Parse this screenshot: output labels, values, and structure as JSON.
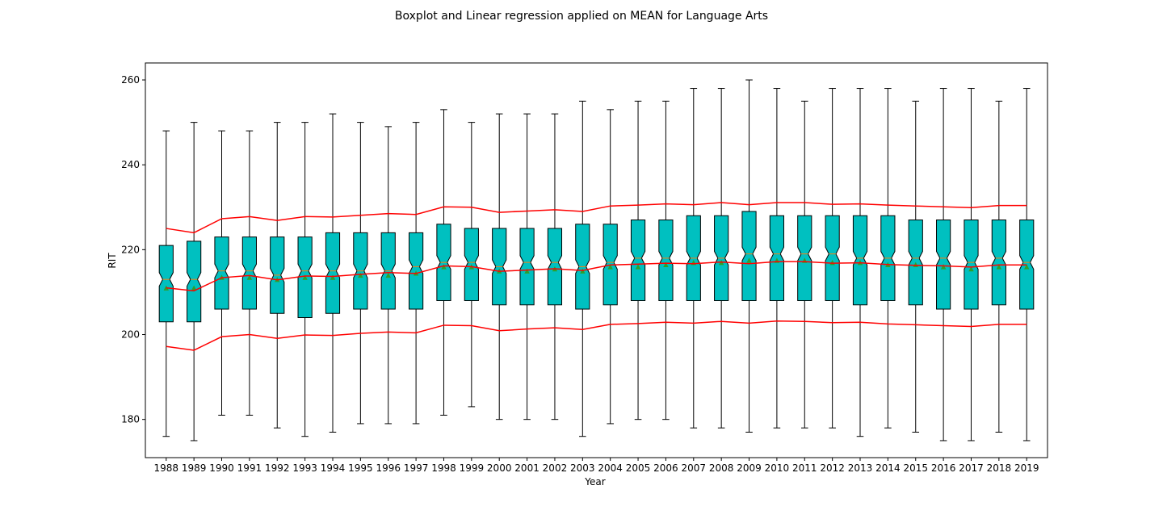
{
  "chart_data": {
    "type": "boxplot",
    "title": "Boxplot and Linear regression applied on MEAN for Language Arts",
    "xlabel": "Year",
    "ylabel": "RIT",
    "ylim": [
      171,
      264
    ],
    "yticks": [
      180,
      200,
      220,
      240,
      260
    ],
    "grid": false,
    "box_color": "#00c0c0",
    "median_color": "#ff7f0e",
    "mean_marker_color": "#2ca02c",
    "regression_color": "#ff0000",
    "categories": [
      "1988",
      "1989",
      "1990",
      "1991",
      "1992",
      "1993",
      "1994",
      "1995",
      "1996",
      "1997",
      "1998",
      "1999",
      "2000",
      "2001",
      "2002",
      "2003",
      "2004",
      "2005",
      "2006",
      "2007",
      "2008",
      "2009",
      "2010",
      "2011",
      "2012",
      "2013",
      "2014",
      "2015",
      "2016",
      "2017",
      "2018",
      "2019"
    ],
    "boxes": {
      "whisker_low": [
        176,
        175,
        181,
        181,
        178,
        176,
        177,
        179,
        179,
        179,
        181,
        183,
        180,
        180,
        180,
        176,
        179,
        180,
        180,
        178,
        178,
        177,
        178,
        178,
        178,
        176,
        178,
        177,
        175,
        175,
        177,
        175
      ],
      "q1": [
        203,
        203,
        206,
        206,
        205,
        204,
        205,
        206,
        206,
        206,
        208,
        208,
        207,
        207,
        207,
        206,
        207,
        208,
        208,
        208,
        208,
        208,
        208,
        208,
        208,
        207,
        208,
        207,
        206,
        206,
        207,
        206
      ],
      "median": [
        213,
        213,
        215,
        215,
        214,
        215,
        215,
        215,
        215,
        216,
        217,
        217,
        216,
        217,
        217,
        216,
        217,
        218,
        218,
        218,
        218,
        219,
        219,
        219,
        219,
        218,
        218,
        218,
        218,
        217,
        218,
        217
      ],
      "q3": [
        221,
        222,
        223,
        223,
        223,
        223,
        224,
        224,
        224,
        224,
        226,
        225,
        225,
        225,
        225,
        226,
        226,
        227,
        227,
        228,
        228,
        229,
        228,
        228,
        228,
        228,
        228,
        227,
        227,
        227,
        227,
        227
      ],
      "whisker_high": [
        248,
        250,
        248,
        248,
        250,
        250,
        252,
        250,
        249,
        250,
        253,
        250,
        252,
        252,
        252,
        255,
        253,
        255,
        255,
        258,
        258,
        260,
        258,
        255,
        258,
        258,
        258,
        255,
        258,
        258,
        255,
        258
      ],
      "mean": [
        211,
        211,
        213.5,
        213.5,
        213,
        213.5,
        213.5,
        214,
        214,
        214.5,
        216,
        216,
        215,
        215,
        215.5,
        215,
        216,
        216,
        216.5,
        217,
        217,
        217.5,
        217.5,
        217.5,
        217,
        217,
        216.5,
        216.5,
        216,
        215.5,
        216,
        216
      ]
    },
    "series": [
      {
        "values": [
          225.0,
          224.0,
          227.3,
          227.8,
          226.9,
          227.8,
          227.7,
          228.1,
          228.5,
          228.3,
          230.1,
          230.0,
          228.8,
          229.1,
          229.4,
          229.0,
          230.3,
          230.5,
          230.8,
          230.6,
          231.1,
          230.6,
          231.1,
          231.1,
          230.7,
          230.8,
          230.5,
          230.3,
          230.1,
          229.9,
          230.4,
          230.4
        ]
      },
      {
        "values": [
          211.0,
          210.3,
          213.4,
          213.9,
          212.9,
          213.8,
          213.7,
          214.2,
          214.6,
          214.4,
          216.2,
          216.0,
          214.9,
          215.2,
          215.5,
          215.1,
          216.4,
          216.6,
          216.8,
          216.7,
          217.1,
          216.7,
          217.2,
          217.2,
          216.8,
          216.9,
          216.5,
          216.3,
          216.2,
          215.9,
          216.4,
          216.4
        ]
      },
      {
        "values": [
          197.2,
          196.3,
          199.5,
          200.0,
          199.1,
          199.9,
          199.8,
          200.3,
          200.6,
          200.4,
          202.2,
          202.1,
          200.9,
          201.3,
          201.6,
          201.2,
          202.4,
          202.6,
          202.9,
          202.7,
          203.1,
          202.7,
          203.2,
          203.1,
          202.8,
          202.9,
          202.5,
          202.3,
          202.1,
          201.9,
          202.4,
          202.4
        ]
      }
    ]
  }
}
